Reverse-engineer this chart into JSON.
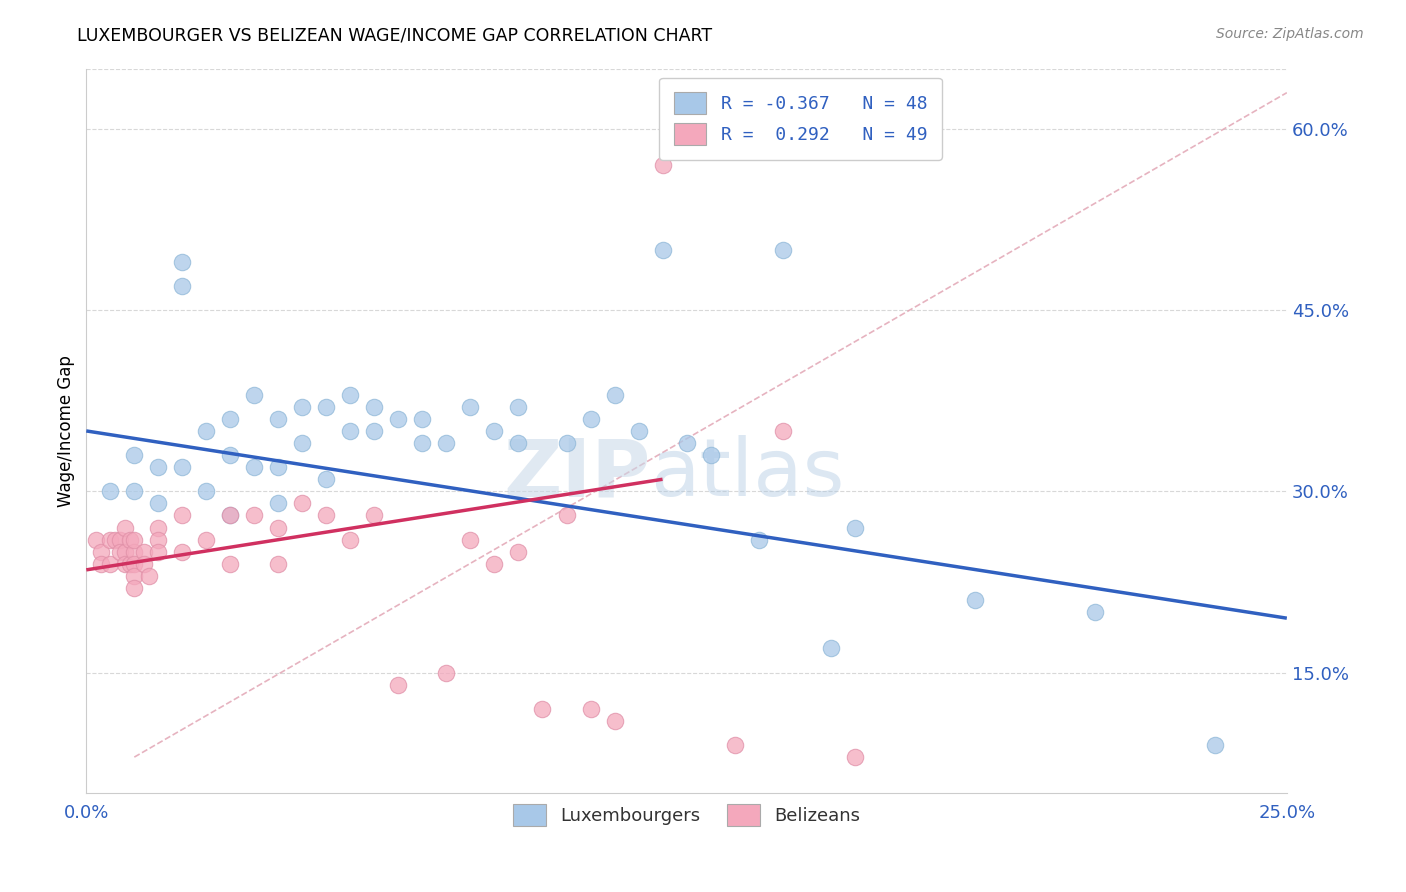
{
  "title": "LUXEMBOURGER VS BELIZEAN WAGE/INCOME GAP CORRELATION CHART",
  "source": "Source: ZipAtlas.com",
  "ylabel": "Wage/Income Gap",
  "xlim": [
    0.0,
    0.25
  ],
  "ylim": [
    0.05,
    0.65
  ],
  "x_tick_positions": [
    0.0,
    0.05,
    0.1,
    0.15,
    0.2,
    0.25
  ],
  "x_tick_labels": [
    "0.0%",
    "",
    "",
    "",
    "",
    "25.0%"
  ],
  "y_tick_positions": [
    0.15,
    0.3,
    0.45,
    0.6
  ],
  "y_tick_labels": [
    "15.0%",
    "30.0%",
    "45.0%",
    "60.0%"
  ],
  "legend_r_lux": "-0.367",
  "legend_n_lux": "48",
  "legend_r_bel": "0.292",
  "legend_n_bel": "49",
  "lux_color": "#A8C8E8",
  "bel_color": "#F4A8BC",
  "lux_line_color": "#3060C0",
  "bel_line_color": "#D03060",
  "diag_line_color": "#D0B0B8",
  "watermark_color": "#D0E4F4",
  "background_color": "#FFFFFF",
  "lux_scatter_x": [
    0.005,
    0.01,
    0.01,
    0.015,
    0.015,
    0.02,
    0.02,
    0.02,
    0.025,
    0.025,
    0.03,
    0.03,
    0.03,
    0.035,
    0.035,
    0.04,
    0.04,
    0.04,
    0.045,
    0.045,
    0.05,
    0.05,
    0.055,
    0.055,
    0.06,
    0.06,
    0.065,
    0.07,
    0.07,
    0.075,
    0.08,
    0.085,
    0.09,
    0.09,
    0.1,
    0.105,
    0.11,
    0.115,
    0.12,
    0.125,
    0.13,
    0.14,
    0.145,
    0.155,
    0.16,
    0.185,
    0.21,
    0.235
  ],
  "lux_scatter_y": [
    0.3,
    0.3,
    0.33,
    0.32,
    0.29,
    0.47,
    0.49,
    0.32,
    0.35,
    0.3,
    0.36,
    0.33,
    0.28,
    0.38,
    0.32,
    0.36,
    0.32,
    0.29,
    0.37,
    0.34,
    0.37,
    0.31,
    0.38,
    0.35,
    0.35,
    0.37,
    0.36,
    0.36,
    0.34,
    0.34,
    0.37,
    0.35,
    0.37,
    0.34,
    0.34,
    0.36,
    0.38,
    0.35,
    0.5,
    0.34,
    0.33,
    0.26,
    0.5,
    0.17,
    0.27,
    0.21,
    0.2,
    0.09
  ],
  "bel_scatter_x": [
    0.002,
    0.003,
    0.003,
    0.005,
    0.005,
    0.006,
    0.007,
    0.007,
    0.008,
    0.008,
    0.008,
    0.009,
    0.009,
    0.01,
    0.01,
    0.01,
    0.01,
    0.01,
    0.012,
    0.012,
    0.013,
    0.015,
    0.015,
    0.015,
    0.02,
    0.02,
    0.025,
    0.03,
    0.03,
    0.035,
    0.04,
    0.04,
    0.045,
    0.05,
    0.055,
    0.06,
    0.065,
    0.075,
    0.08,
    0.085,
    0.09,
    0.095,
    0.1,
    0.105,
    0.11,
    0.12,
    0.135,
    0.145,
    0.16
  ],
  "bel_scatter_y": [
    0.26,
    0.25,
    0.24,
    0.26,
    0.24,
    0.26,
    0.26,
    0.25,
    0.27,
    0.25,
    0.24,
    0.26,
    0.24,
    0.25,
    0.26,
    0.24,
    0.23,
    0.22,
    0.25,
    0.24,
    0.23,
    0.27,
    0.26,
    0.25,
    0.25,
    0.28,
    0.26,
    0.28,
    0.24,
    0.28,
    0.27,
    0.24,
    0.29,
    0.28,
    0.26,
    0.28,
    0.14,
    0.15,
    0.26,
    0.24,
    0.25,
    0.12,
    0.28,
    0.12,
    0.11,
    0.57,
    0.09,
    0.35,
    0.08
  ],
  "lux_line_x0": 0.0,
  "lux_line_y0": 0.35,
  "lux_line_x1": 0.25,
  "lux_line_y1": 0.195,
  "bel_line_x0": 0.0,
  "bel_line_y0": 0.235,
  "bel_line_x1": 0.12,
  "bel_line_y1": 0.31
}
